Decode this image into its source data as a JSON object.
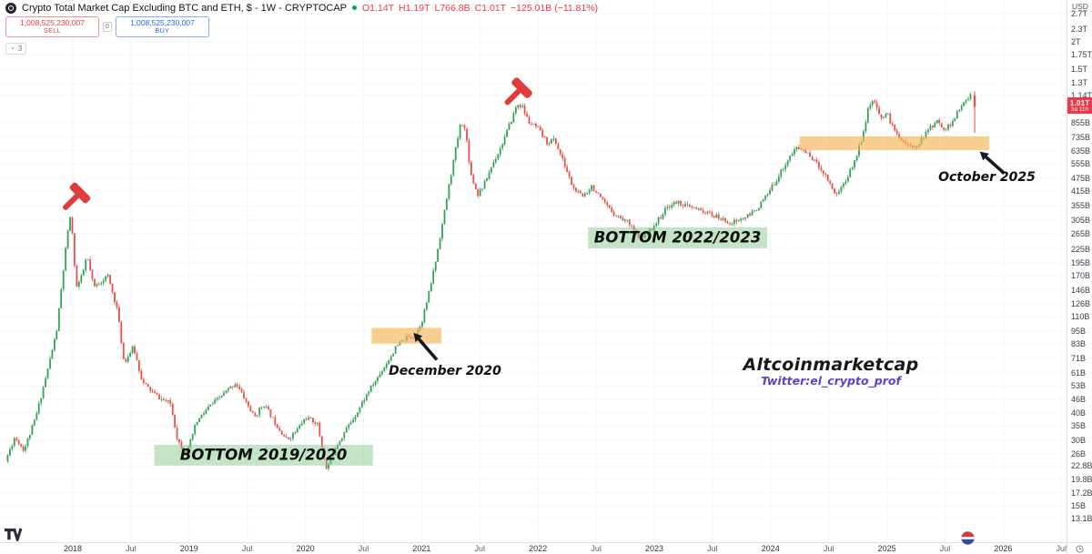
{
  "header": {
    "symbol_title": "Crypto Total Market Cap Excluding BTC and ETH, $ - 1W - CRYPTOCAP",
    "ohlc": {
      "open": "O1.14T",
      "high": "H1.19T",
      "low": "L766.8B",
      "close": "C1.01T",
      "change": "−125.01B (−11.81%)"
    },
    "sell_button": {
      "value": "1,008,525,230,007",
      "label": "SELL"
    },
    "spread": "0",
    "buy_button": {
      "value": "1,008,525,230,007",
      "label": "BUY"
    },
    "indicators_chip": {
      "chevron": "⌄",
      "count": "3"
    }
  },
  "price_axis": {
    "currency": "USD",
    "levels": [
      [
        "2.7T",
        2700
      ],
      [
        "2.3T",
        2300
      ],
      [
        "2T",
        2000
      ],
      [
        "1.75T",
        1750
      ],
      [
        "1.5T",
        1500
      ],
      [
        "1.3T",
        1300
      ],
      [
        "1.14T",
        1140
      ],
      [
        "855B",
        855
      ],
      [
        "735B",
        735
      ],
      [
        "635B",
        635
      ],
      [
        "555B",
        555
      ],
      [
        "475B",
        475
      ],
      [
        "415B",
        415
      ],
      [
        "355B",
        355
      ],
      [
        "305B",
        305
      ],
      [
        "265B",
        265
      ],
      [
        "225B",
        225
      ],
      [
        "195B",
        195
      ],
      [
        "170B",
        170
      ],
      [
        "146B",
        146
      ],
      [
        "126B",
        126
      ],
      [
        "110B",
        110
      ],
      [
        "95B",
        95
      ],
      [
        "83B",
        83
      ],
      [
        "71B",
        71
      ],
      [
        "61B",
        61
      ],
      [
        "53B",
        53
      ],
      [
        "46B",
        46
      ],
      [
        "40B",
        40
      ],
      [
        "35B",
        35
      ],
      [
        "30B",
        30
      ],
      [
        "26B",
        26
      ],
      [
        "22.8B",
        22.8
      ],
      [
        "19.8B",
        19.8
      ],
      [
        "17.2B",
        17.2
      ],
      [
        "15B",
        15
      ],
      [
        "13.1B",
        13.1
      ]
    ],
    "price_tag": {
      "price": "1.01T",
      "countdown": "3d 11h"
    }
  },
  "time_axis": {
    "labels": [
      [
        "2018",
        2018
      ],
      [
        "Jul",
        2018.5
      ],
      [
        "2019",
        2019
      ],
      [
        "Jul",
        2019.5
      ],
      [
        "2020",
        2020
      ],
      [
        "Jul",
        2020.5
      ],
      [
        "2021",
        2021
      ],
      [
        "Jul",
        2021.5
      ],
      [
        "2022",
        2022
      ],
      [
        "Jul",
        2022.5
      ],
      [
        "2023",
        2023
      ],
      [
        "Jul",
        2023.5
      ],
      [
        "2024",
        2024
      ],
      [
        "Jul",
        2024.5
      ],
      [
        "2025",
        2025
      ],
      [
        "Jul",
        2025.5
      ],
      [
        "2026",
        2026
      ],
      [
        "Jul",
        2026.5
      ]
    ]
  },
  "annotations": {
    "bands": [
      {
        "id": "bottom-2019-2020",
        "type": "green",
        "t1": 2018.7,
        "t2": 2020.58,
        "p1": 22.9,
        "p2": 28.5,
        "label": "BOTTOM 2019/2020"
      },
      {
        "id": "bottom-2022-2023",
        "type": "green",
        "t1": 2022.43,
        "t2": 2023.97,
        "p1": 227,
        "p2": 283,
        "label": "BOTTOM 2022/2023"
      },
      {
        "id": "december-2020-zone",
        "type": "orange",
        "t1": 2020.57,
        "t2": 2021.17,
        "p1": 83,
        "p2": 98,
        "label": ""
      },
      {
        "id": "october-2025-zone",
        "type": "orange",
        "t1": 2024.25,
        "t2": 2025.88,
        "p1": 640,
        "p2": 740,
        "label": ""
      }
    ],
    "texts": [
      {
        "id": "december-2020",
        "label": "December 2020",
        "t": 2021.2,
        "p": 62
      },
      {
        "id": "october-2025",
        "label": "October 2025",
        "t": 2025.86,
        "p": 478
      }
    ],
    "arrows": [
      {
        "from_t": 2021.13,
        "from_p": 70,
        "to_t": 2020.93,
        "to_p": 93
      },
      {
        "from_t": 2026.01,
        "from_p": 500,
        "to_t": 2025.8,
        "to_p": 630
      }
    ],
    "hammers": [
      {
        "t": 2018.0,
        "p": 330
      },
      {
        "t": 2021.8,
        "p": 1000
      }
    ]
  },
  "watermark": {
    "line1": "Altcoinmarketcap",
    "line2": "Twitter:el_crypto_prof"
  },
  "chart_data": {
    "type": "candlestick",
    "title": "Crypto Total Market Cap Excluding BTC and ETH (CRYPTOCAP)",
    "timeframe": "1W",
    "unit": "USD billions",
    "scale": "log",
    "y_range_billions": [
      13.1,
      2700
    ],
    "x_range_years": [
      2017.44,
      2026.6
    ],
    "last_candle": {
      "t": 2025.755,
      "open": 1140,
      "high": 1190,
      "low": 766.8,
      "close": 1010
    },
    "price_path_anchors": [
      [
        2017.44,
        24
      ],
      [
        2017.52,
        31
      ],
      [
        2017.6,
        27
      ],
      [
        2017.7,
        38
      ],
      [
        2017.8,
        62
      ],
      [
        2017.88,
        95
      ],
      [
        2017.96,
        230
      ],
      [
        2018.0,
        330
      ],
      [
        2018.05,
        150
      ],
      [
        2018.1,
        170
      ],
      [
        2018.14,
        210
      ],
      [
        2018.2,
        150
      ],
      [
        2018.26,
        160
      ],
      [
        2018.32,
        170
      ],
      [
        2018.4,
        120
      ],
      [
        2018.46,
        68
      ],
      [
        2018.54,
        80
      ],
      [
        2018.62,
        55
      ],
      [
        2018.7,
        50
      ],
      [
        2018.78,
        46
      ],
      [
        2018.86,
        44
      ],
      [
        2018.92,
        30
      ],
      [
        2019.0,
        26
      ],
      [
        2019.08,
        36
      ],
      [
        2019.18,
        42
      ],
      [
        2019.3,
        48
      ],
      [
        2019.42,
        55
      ],
      [
        2019.5,
        46
      ],
      [
        2019.58,
        38
      ],
      [
        2019.66,
        44
      ],
      [
        2019.76,
        36
      ],
      [
        2019.86,
        30
      ],
      [
        2019.94,
        33
      ],
      [
        2020.02,
        38
      ],
      [
        2020.12,
        36
      ],
      [
        2020.2,
        22
      ],
      [
        2020.28,
        28
      ],
      [
        2020.36,
        33
      ],
      [
        2020.46,
        40
      ],
      [
        2020.56,
        50
      ],
      [
        2020.64,
        58
      ],
      [
        2020.72,
        68
      ],
      [
        2020.8,
        80
      ],
      [
        2020.88,
        88
      ],
      [
        2020.96,
        90
      ],
      [
        2021.02,
        105
      ],
      [
        2021.08,
        140
      ],
      [
        2021.14,
        200
      ],
      [
        2021.2,
        300
      ],
      [
        2021.26,
        460
      ],
      [
        2021.31,
        640
      ],
      [
        2021.36,
        880
      ],
      [
        2021.4,
        760
      ],
      [
        2021.44,
        500
      ],
      [
        2021.5,
        400
      ],
      [
        2021.56,
        450
      ],
      [
        2021.62,
        540
      ],
      [
        2021.7,
        660
      ],
      [
        2021.78,
        850
      ],
      [
        2021.84,
        1040
      ],
      [
        2021.88,
        1020
      ],
      [
        2021.94,
        860
      ],
      [
        2022.02,
        800
      ],
      [
        2022.1,
        690
      ],
      [
        2022.16,
        720
      ],
      [
        2022.24,
        560
      ],
      [
        2022.32,
        430
      ],
      [
        2022.4,
        390
      ],
      [
        2022.48,
        440
      ],
      [
        2022.56,
        380
      ],
      [
        2022.64,
        340
      ],
      [
        2022.72,
        315
      ],
      [
        2022.82,
        295
      ],
      [
        2022.88,
        250
      ],
      [
        2022.96,
        265
      ],
      [
        2023.06,
        310
      ],
      [
        2023.14,
        355
      ],
      [
        2023.22,
        370
      ],
      [
        2023.32,
        350
      ],
      [
        2023.42,
        338
      ],
      [
        2023.52,
        322
      ],
      [
        2023.6,
        308
      ],
      [
        2023.68,
        296
      ],
      [
        2023.76,
        308
      ],
      [
        2023.84,
        322
      ],
      [
        2023.92,
        355
      ],
      [
        2024.0,
        405
      ],
      [
        2024.08,
        480
      ],
      [
        2024.16,
        570
      ],
      [
        2024.24,
        655
      ],
      [
        2024.3,
        640
      ],
      [
        2024.38,
        585
      ],
      [
        2024.46,
        520
      ],
      [
        2024.52,
        462
      ],
      [
        2024.58,
        398
      ],
      [
        2024.66,
        458
      ],
      [
        2024.74,
        565
      ],
      [
        2024.8,
        720
      ],
      [
        2024.86,
        990
      ],
      [
        2024.9,
        1085
      ],
      [
        2024.96,
        905
      ],
      [
        2025.02,
        945
      ],
      [
        2025.08,
        790
      ],
      [
        2025.16,
        705
      ],
      [
        2025.24,
        648
      ],
      [
        2025.32,
        718
      ],
      [
        2025.4,
        825
      ],
      [
        2025.46,
        868
      ],
      [
        2025.52,
        795
      ],
      [
        2025.58,
        858
      ],
      [
        2025.64,
        975
      ],
      [
        2025.7,
        1085
      ],
      [
        2025.735,
        1140
      ]
    ]
  },
  "colors": {
    "candle_up": "#33a157",
    "candle_down": "#e7504b",
    "accent_red": "#f23645",
    "accent_blue": "#2962ff",
    "band_green": "rgba(125,195,130,0.45)",
    "band_orange": "rgba(244,180,86,0.65)",
    "hammer": "#e23b3b",
    "arrow": "#16181d",
    "grid_v": "#f1f3f6",
    "grid_h": "#f5f7f9"
  }
}
